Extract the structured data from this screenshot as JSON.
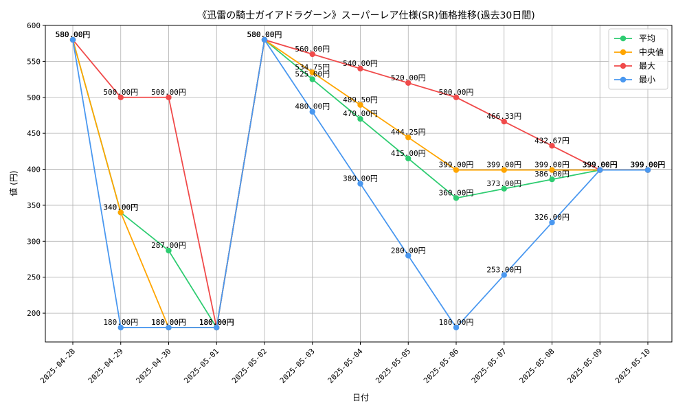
{
  "chart_data": {
    "type": "line",
    "title": "《迅雷の騎士ガイアドラグーン》スーパーレア仕様(SR)価格推移(過去30日間)",
    "xlabel": "日付",
    "ylabel": "値 (円)",
    "ylim": [
      160,
      600
    ],
    "yticks": [
      200,
      250,
      300,
      350,
      400,
      450,
      500,
      550,
      600
    ],
    "grid": true,
    "legend_position": "top-right",
    "x": [
      "2025-04-28",
      "2025-04-29",
      "2025-04-30",
      "2025-05-01",
      "2025-05-02",
      "2025-05-03",
      "2025-05-04",
      "2025-05-05",
      "2025-05-06",
      "2025-05-07",
      "2025-05-08",
      "2025-05-09",
      "2025-05-10"
    ],
    "series": [
      {
        "name": "平均",
        "color": "#2ecc71",
        "values": [
          580,
          340,
          287,
          180,
          580,
          525,
          470,
          415,
          360,
          373,
          386,
          399,
          399
        ]
      },
      {
        "name": "中央値",
        "color": "#ffa500",
        "values": [
          580,
          340,
          180,
          180,
          580,
          534.75,
          489.5,
          444.25,
          399,
          399,
          399,
          399,
          399
        ]
      },
      {
        "name": "最大",
        "color": "#f04a4a",
        "values": [
          580,
          500,
          500,
          180,
          580,
          560,
          540,
          520,
          500,
          466.33,
          432.67,
          399,
          399
        ]
      },
      {
        "name": "最小",
        "color": "#4a98f0",
        "values": [
          580,
          180,
          180,
          180,
          580,
          480,
          380,
          280,
          180,
          253,
          326,
          399,
          399
        ]
      }
    ],
    "data_labels": [
      {
        "series": 0,
        "labels": [
          "580.00円",
          "340.00円",
          "287.00円",
          "180.00円",
          "580.00円",
          "525.00円",
          "470.00円",
          "415.00円",
          "360.00円",
          "373.00円",
          "386.00円",
          "399.00円",
          "399.00円"
        ]
      },
      {
        "series": 1,
        "labels": [
          "580.00円",
          "340.00円",
          "180.00円",
          "180.00円",
          "580.00円",
          "534.75円",
          "489.50円",
          "444.25円",
          "399.00円",
          "399.00円",
          "399.00円",
          "399.00円",
          "399.00円"
        ]
      },
      {
        "series": 2,
        "labels": [
          "580.00円",
          "500.00円",
          "500.00円",
          "180.00円",
          "580.00円",
          "560.00円",
          "540.00円",
          "520.00円",
          "500.00円",
          "466.33円",
          "432.67円",
          "399.00円",
          "399.00円"
        ]
      },
      {
        "series": 3,
        "labels": [
          "580.00円",
          "180.00円",
          "180.00円",
          "180.00円",
          "580.00円",
          "480.00円",
          "380.00円",
          "280.00円",
          "180.00円",
          "253.00円",
          "326.00円",
          "399.00円",
          "399.00円"
        ]
      }
    ]
  }
}
